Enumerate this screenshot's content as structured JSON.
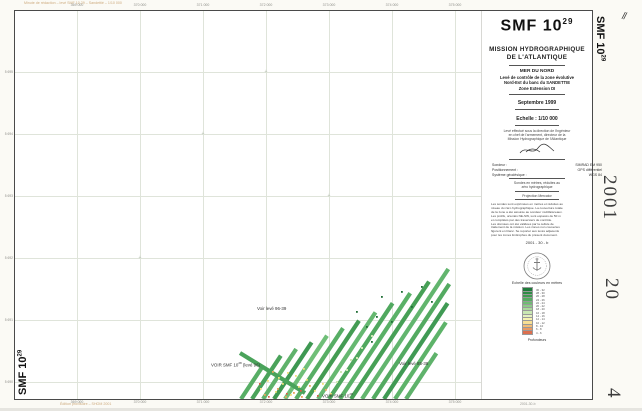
{
  "title_block": {
    "title": "SMF 10",
    "title_sup": "29",
    "mission": [
      "MISSION HYDROGRAPHIQUE",
      "DE L'ATLANTIQUE"
    ],
    "zone": [
      "MER DU NORD",
      "Levé de contrôle de la zone évolutive",
      "Nord-Est du banc du SANDETTIE",
      "Zone Extension DI"
    ],
    "date": "Septembre 1999",
    "scale": "Echelle : 1/10 000",
    "note": [
      "Levé effectué sous la direction de l'ingénieur",
      "en chef de l'armement, directeur de la",
      "Mission Hydrographique de l'Atlantique"
    ],
    "specs": [
      {
        "label": "Sondeur :",
        "value": "SIMRAD EM 950"
      },
      {
        "label": "Positionnement :",
        "value": "GPS différentiel"
      },
      {
        "label": "Système géodésique :",
        "value": "WGS 84"
      }
    ],
    "reduction": [
      "Sondes en mètres, réduites au",
      "zéro hydrographique"
    ],
    "projection": "Projection Mercator",
    "paragraph": [
      "Les sondes sont exprimées en mètres et réduites au",
      "niveau du zéro hydrographique. La couverture totale",
      "de la zone a été assurée au sondeur multifaisceaux.",
      "Les profils, orientés NE-SW, sont espacés de 50 m",
      "et complétés par des traversiers de contrôle.",
      "Les données ont été validées par la cellule de",
      "traitement de la mission. Les zones non couvertes",
      "figurent en blanc. Se reporter aux levés adjacents",
      "pour les zones limitrophes du présent document."
    ],
    "ref": "2001 - 30 - b"
  },
  "legend": {
    "title": "Echelle des couleurs en mètres",
    "footer": "Profondeurs",
    "entries": [
      {
        "color": "#1e7b3a",
        "label": "30 - 32"
      },
      {
        "color": "#2f8c46",
        "label": "28 - 30"
      },
      {
        "color": "#3f9b51",
        "label": "26 - 28"
      },
      {
        "color": "#55ac61",
        "label": "24 - 26"
      },
      {
        "color": "#6fbc74",
        "label": "22 - 24"
      },
      {
        "color": "#8ccb88",
        "label": "20 - 22"
      },
      {
        "color": "#abd99d",
        "label": "18 - 20"
      },
      {
        "color": "#c9e7b2",
        "label": "16 - 18"
      },
      {
        "color": "#e4f1bf",
        "label": "14 - 16"
      },
      {
        "color": "#f6f3b0",
        "label": "12 - 14"
      },
      {
        "color": "#f7df93",
        "label": "10 - 12"
      },
      {
        "color": "#f2bd77",
        "label": "8 - 10"
      },
      {
        "color": "#e99a62",
        "label": "6 - 8"
      },
      {
        "color": "#dd6f4e",
        "label": "4 - 6"
      }
    ]
  },
  "map": {
    "labels": {
      "top": "Voir levé 96-39",
      "left_pre": "VOIR SMF 10",
      "left_sup": "28",
      "left_post": "(levé 96)",
      "right": "Voir levé 85-38",
      "bottom_pre": "VOIR SMF 10",
      "bottom_sup": "28"
    }
  },
  "grid": {
    "eastings": [
      "369 000",
      "370 000",
      "371 000",
      "372 000",
      "373 000",
      "374 000",
      "375 000"
    ],
    "northings": [
      "5 695",
      "5 694",
      "5 693",
      "5 692",
      "5 691",
      "5 690"
    ]
  },
  "margins": {
    "left_vertical": "SMF 10",
    "left_vertical_sup": "29",
    "right_vertical": "SMF 10",
    "right_vertical_sup": "29",
    "archive": [
      "2001",
      "20",
      "4"
    ],
    "top_note": "Minute de rédaction – levé SMF 10 29 – Sandettié – 1/10 000",
    "bottom_note_left": "Édition provisoire – SHOM 2001",
    "bottom_note_right": "2001-30-b",
    "corner_mark": "//"
  }
}
